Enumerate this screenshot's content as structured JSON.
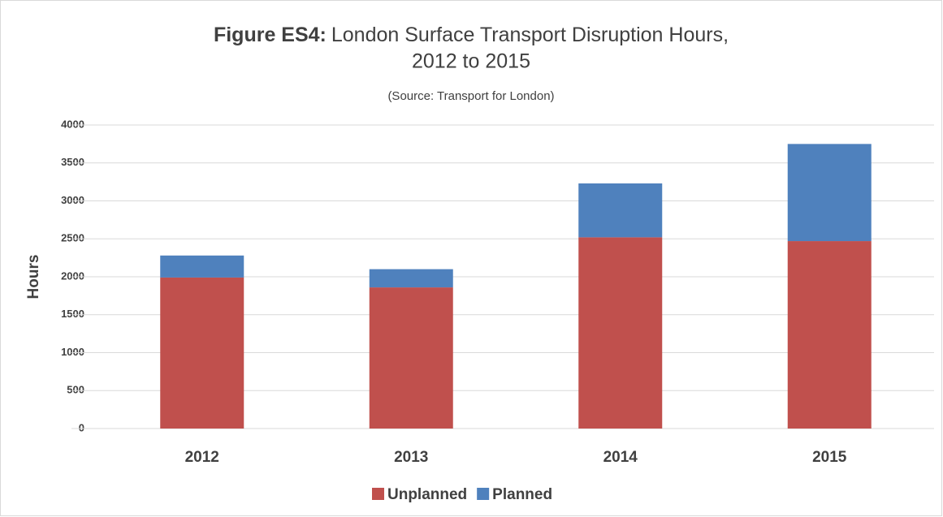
{
  "chart_data": {
    "type": "stacked_bar",
    "title": [
      "Figure ES4:",
      "London Surface Transport Disruption Hours,",
      "2012 to 2015"
    ],
    "subtitle": "(Source: Transport for London)",
    "y_label": "Hours",
    "categories": [
      "2012",
      "2013",
      "2014",
      "2015"
    ],
    "series": [
      {
        "name": "Unplanned",
        "color": "#c0504d",
        "values": [
          1990,
          1860,
          2520,
          2470
        ]
      },
      {
        "name": "Planned",
        "color": "#4f81bd",
        "values": [
          290,
          240,
          710,
          1280
        ]
      }
    ],
    "ylim": [
      0,
      4000
    ],
    "yticks": [
      0,
      500,
      1000,
      1500,
      2000,
      2500,
      3000,
      3500,
      4000
    ],
    "grid": true,
    "legend": "bottom"
  }
}
